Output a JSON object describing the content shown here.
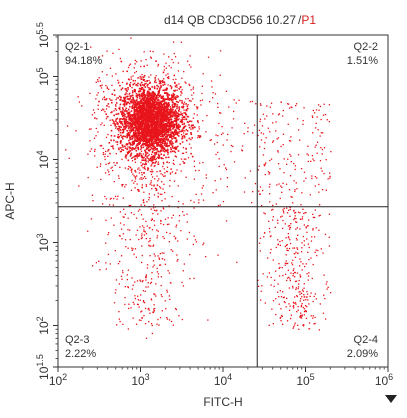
{
  "chart_data": {
    "type": "scatter",
    "title": {
      "prefix": "d14 QB CD3CD56 10.27",
      "separator": "/",
      "gate": "P1",
      "gate_color": "#d62020"
    },
    "xlabel": "FITC-H",
    "ylabel": "APC-H",
    "x_scale": "log",
    "y_scale": "log",
    "xlim_exponent": [
      2,
      6
    ],
    "ylim_exponent": [
      1.5,
      5.5
    ],
    "x_ticks": [
      {
        "base": "10",
        "exp": "2",
        "value": 100
      },
      {
        "base": "10",
        "exp": "3",
        "value": 1000
      },
      {
        "base": "10",
        "exp": "4",
        "value": 10000
      },
      {
        "base": "10",
        "exp": "5",
        "value": 100000
      },
      {
        "base": "10",
        "exp": "6",
        "value": 1000000
      }
    ],
    "y_ticks": [
      {
        "base": "10",
        "exp": "1.5",
        "value": 31.6
      },
      {
        "base": "10",
        "exp": "2",
        "value": 100
      },
      {
        "base": "10",
        "exp": "3",
        "value": 1000
      },
      {
        "base": "10",
        "exp": "4",
        "value": 10000
      },
      {
        "base": "10",
        "exp": "5",
        "value": 100000
      },
      {
        "base": "10",
        "exp": "5.5",
        "value": 316228
      }
    ],
    "gate_x": 26000,
    "gate_y": 2700,
    "quadrants": [
      {
        "name": "Q2-1",
        "percent": "94.18%",
        "position": "top-left"
      },
      {
        "name": "Q2-2",
        "percent": "1.51%",
        "position": "top-right"
      },
      {
        "name": "Q2-3",
        "percent": "2.22%",
        "position": "bottom-left"
      },
      {
        "name": "Q2-4",
        "percent": "2.09%",
        "position": "bottom-right"
      }
    ],
    "point_color": "#e8141c",
    "cluster": {
      "center_x": 1300,
      "center_y": 30000,
      "spread_x_decades": 0.18,
      "spread_y_decades": 0.2
    },
    "grid": false
  },
  "colors": {
    "axis": "#333333",
    "gate_line": "#222222",
    "points": "#e8141c"
  },
  "icons": {
    "axis_menu": "triangle-down-icon"
  }
}
